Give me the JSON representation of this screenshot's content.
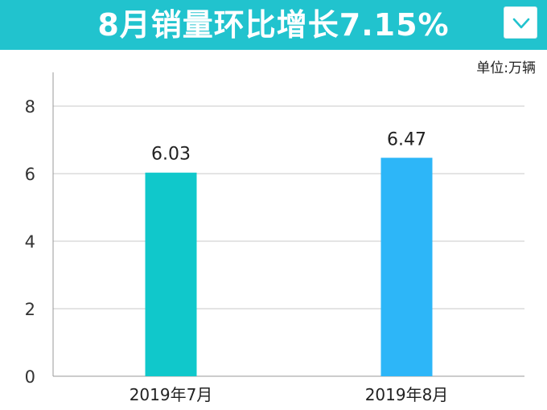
{
  "header": {
    "title": "8月销量环比增长7.15%",
    "background_color": "#21c3ce",
    "dropdown_icon": "chevron-down-icon"
  },
  "unit_label": "单位:万辆",
  "chart_data": {
    "type": "bar",
    "title": "8月销量环比增长7.15%",
    "categories": [
      "2019年7月",
      "2019年8月"
    ],
    "values": [
      6.03,
      6.47
    ],
    "data_labels": [
      "6.03",
      "6.47"
    ],
    "bar_colors": [
      "#10c8cb",
      "#2db6f8"
    ],
    "ylim": [
      0,
      9
    ],
    "yticks": [
      0,
      2,
      4,
      6,
      8
    ],
    "ytick_labels": [
      "0",
      "2",
      "4",
      "6",
      "8"
    ],
    "grid": true,
    "legend": "none",
    "xlabel": "",
    "ylabel": ""
  }
}
